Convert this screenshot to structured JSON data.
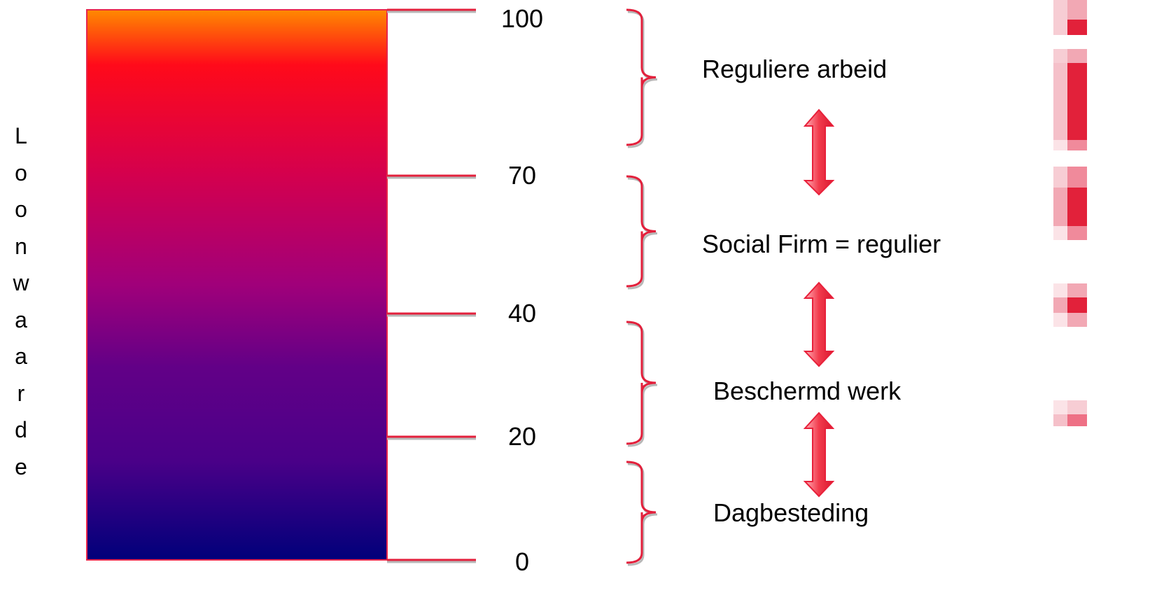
{
  "axis_label_letters": [
    "L",
    "o",
    "o",
    "n",
    "w",
    "a",
    "a",
    "r",
    "d",
    "e"
  ],
  "scale": {
    "min": 0,
    "max": 100,
    "ticks": [
      {
        "value": 100,
        "label": "100"
      },
      {
        "value": 70,
        "label": "70"
      },
      {
        "value": 40,
        "label": "40"
      },
      {
        "value": 20,
        "label": "20"
      },
      {
        "value": 0,
        "label": "0"
      }
    ]
  },
  "categories": [
    {
      "label": "Reguliere arbeid",
      "range": [
        70,
        100
      ]
    },
    {
      "label": "Social Firm = regulier",
      "range": [
        40,
        70
      ]
    },
    {
      "label": "Beschermd werk",
      "range": [
        20,
        40
      ]
    },
    {
      "label": "Dagbesteding",
      "range": [
        0,
        20
      ]
    }
  ],
  "colors": {
    "bar_gradient": [
      "#ff8a00",
      "#ff0a1a",
      "#d4004e",
      "#a0007a",
      "#620087",
      "#4a0088",
      "#00007a"
    ],
    "bar_border": "#e8254a",
    "tick_line": "#e3203c",
    "brace": "#e3203c",
    "arrow_fill": "#f24a5a",
    "arrow_stroke": "#e8203a",
    "deco_dark": "#e2213a",
    "deco_light": "#f2a8b4"
  }
}
